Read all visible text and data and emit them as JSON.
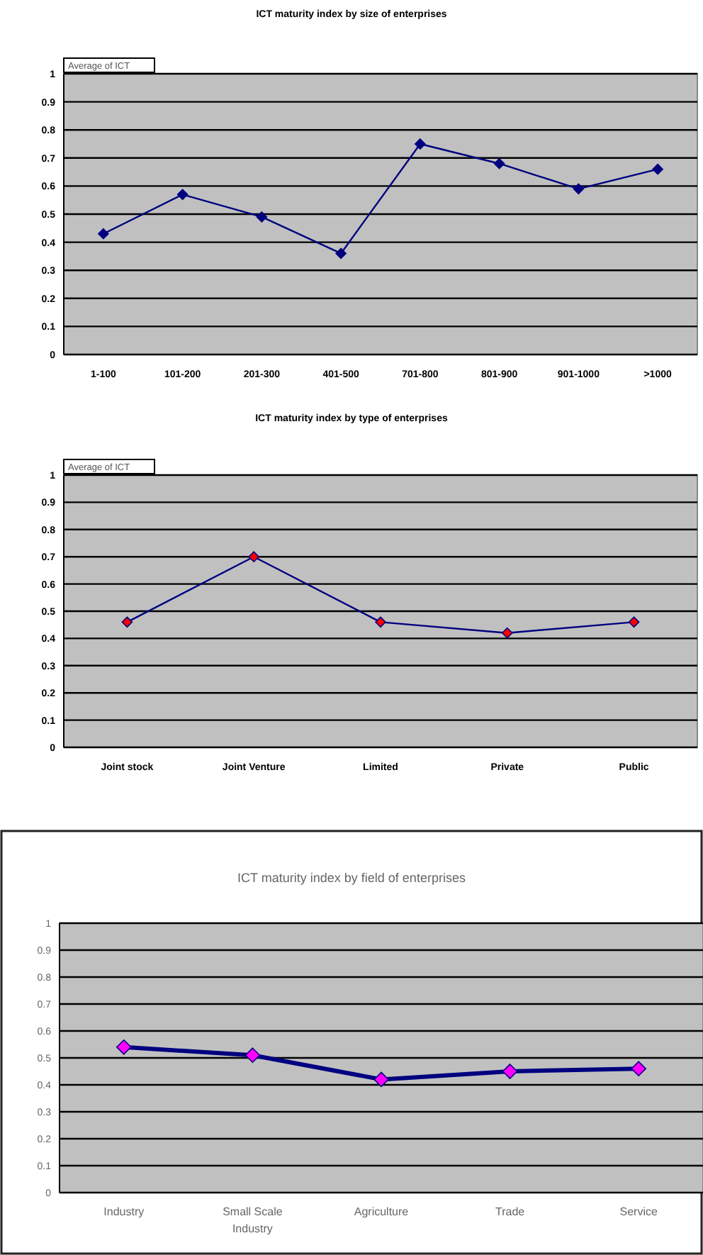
{
  "chart_data": [
    {
      "type": "line",
      "title": "ICT maturity index by size of enterprises",
      "annotations": [
        "Average of ICT"
      ],
      "categories": [
        "1-100",
        "101-200",
        "201-300",
        "401-500",
        "701-800",
        "801-900",
        "901-1000",
        ">1000"
      ],
      "series": [
        {
          "color": "#000080",
          "colors": [
            "#000080",
            "#000080",
            "#000080",
            "#000080",
            "#000080",
            "#000080",
            "#000080",
            "#000080"
          ],
          "values": [
            0.43,
            0.57,
            0.49,
            0.36,
            0.75,
            0.68,
            0.59,
            0.66
          ]
        }
      ],
      "ylim": [
        0,
        1
      ],
      "yticks": [
        0,
        0.1,
        0.2,
        0.3,
        0.4,
        0.5,
        0.6,
        0.7,
        0.8,
        0.9,
        1
      ],
      "grid": "y",
      "marker": "diamond",
      "line_style": "solid"
    },
    {
      "type": "line",
      "title": "ICT maturity index by type of enterprises",
      "annotations": [
        "Average of ICT"
      ],
      "categories": [
        "Joint stock",
        "Joint Venture",
        "Limited",
        "Private",
        "Public"
      ],
      "series": [
        {
          "color": "#000080",
          "colors": [
            "#ff0000",
            "#ff0000",
            "#ff0000",
            "#ff0000",
            "#ff0000"
          ],
          "values": [
            0.46,
            0.7,
            0.46,
            0.42,
            0.46
          ]
        }
      ],
      "ylim": [
        0,
        1
      ],
      "yticks": [
        0,
        0.1,
        0.2,
        0.3,
        0.4,
        0.5,
        0.6,
        0.7,
        0.8,
        0.9,
        1
      ],
      "grid": "y",
      "marker": "diamond",
      "line_style": "solid"
    },
    {
      "type": "line",
      "title": "ICT maturity index by field of enterprises",
      "categories": [
        "Industry",
        "Small Scale Industry",
        "Agriculture",
        "Trade",
        "Service"
      ],
      "series": [
        {
          "color": "#000080",
          "colors": [
            "#ff00ff",
            "#ff00ff",
            "#ff00ff",
            "#ff00ff",
            "#ff00ff"
          ],
          "values": [
            0.54,
            0.51,
            0.42,
            0.45,
            0.46
          ]
        }
      ],
      "ylim": [
        0,
        1
      ],
      "yticks": [
        0,
        0.1,
        0.2,
        0.3,
        0.4,
        0.5,
        0.6,
        0.7,
        0.8,
        0.9,
        1
      ],
      "grid": "y",
      "marker": "diamond",
      "line_style": "solid"
    }
  ]
}
